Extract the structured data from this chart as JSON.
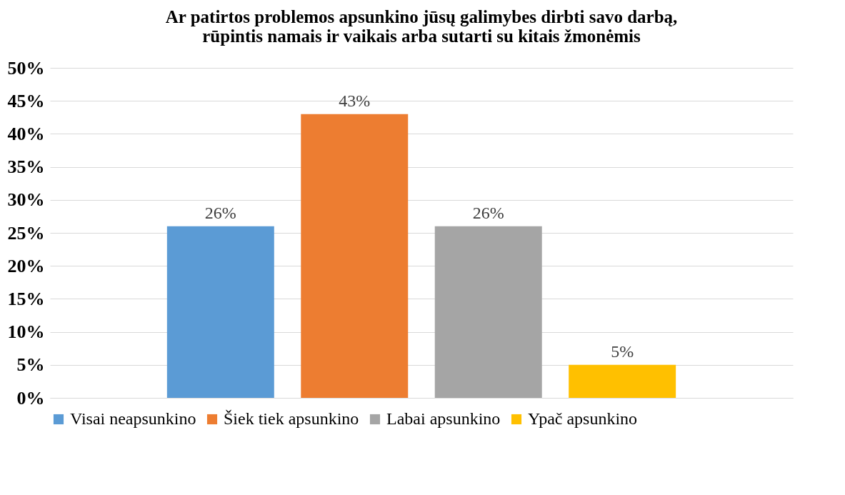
{
  "chart_data": {
    "type": "bar",
    "title": "Ar patirtos problemos apsunkino jūsų galimybes dirbti savo darbą,\nrūpintis namais ir vaikais arba sutarti su kitais žmonėmis",
    "categories": [
      null
    ],
    "series": [
      {
        "name": "Visai neapsunkino",
        "color": "#5b9bd5",
        "values": [
          26
        ],
        "value_labels": [
          "26%"
        ]
      },
      {
        "name": "Šiek tiek apsunkino",
        "color": "#ed7d31",
        "values": [
          43
        ],
        "value_labels": [
          "43%"
        ]
      },
      {
        "name": "Labai apsunkino",
        "color": "#a5a5a5",
        "values": [
          26
        ],
        "value_labels": [
          "26%"
        ]
      },
      {
        "name": "Ypač apsunkino",
        "color": "#ffc000",
        "values": [
          5
        ],
        "value_labels": [
          "5%"
        ]
      }
    ],
    "ylim": [
      0,
      50
    ],
    "yticks": [
      {
        "value": 0,
        "label": "0%"
      },
      {
        "value": 5,
        "label": "5%"
      },
      {
        "value": 10,
        "label": "10%"
      },
      {
        "value": 15,
        "label": "15%"
      },
      {
        "value": 20,
        "label": "20%"
      },
      {
        "value": 25,
        "label": "25%"
      },
      {
        "value": 30,
        "label": "30%"
      },
      {
        "value": 35,
        "label": "35%"
      },
      {
        "value": 40,
        "label": "40%"
      },
      {
        "value": 45,
        "label": "45%"
      },
      {
        "value": 50,
        "label": "50%"
      }
    ],
    "grid": "y",
    "legend": "bottom",
    "tick_labels": "y"
  }
}
